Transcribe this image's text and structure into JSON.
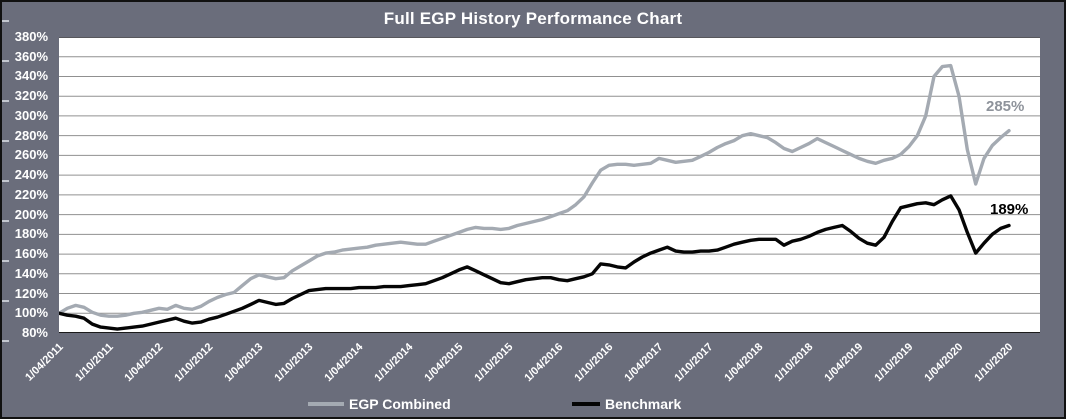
{
  "chart_data": {
    "type": "line",
    "title": "Full EGP History Performance Chart",
    "grid": true,
    "legend_position": "bottom",
    "y_axis": {
      "min": 80,
      "max": 380,
      "step": 20,
      "tick_suffix": "%",
      "tick_labels": [
        "380%",
        "360%",
        "340%",
        "320%",
        "300%",
        "280%",
        "260%",
        "240%",
        "220%",
        "200%",
        "180%",
        "160%",
        "140%",
        "120%",
        "100%",
        "80%"
      ]
    },
    "x_axis": {
      "tick_labels": [
        "1/04/2011",
        "1/10/2011",
        "1/04/2012",
        "1/10/2012",
        "1/04/2013",
        "1/10/2013",
        "1/04/2014",
        "1/10/2014",
        "1/04/2015",
        "1/10/2015",
        "1/04/2016",
        "1/10/2016",
        "1/04/2017",
        "1/10/2017",
        "1/04/2018",
        "1/10/2018",
        "1/04/2019",
        "1/10/2019",
        "1/04/2020",
        "1/10/2020"
      ],
      "frequency": "monthly",
      "start": "1/04/2011",
      "end": "1/10/2020"
    },
    "series": [
      {
        "name": "EGP Combined",
        "color": "#a4aab2",
        "end_label": "285%",
        "values": [
          100,
          105,
          108,
          106,
          101,
          98,
          97,
          97,
          98,
          100,
          101,
          103,
          105,
          104,
          108,
          105,
          104,
          107,
          112,
          116,
          119,
          121,
          128,
          135,
          139,
          137,
          135,
          136,
          143,
          148,
          153,
          158,
          161,
          162,
          164,
          165,
          166,
          167,
          169,
          170,
          171,
          172,
          171,
          170,
          170,
          173,
          176,
          179,
          182,
          185,
          187,
          186,
          186,
          185,
          186,
          189,
          191,
          193,
          195,
          198,
          201,
          204,
          210,
          218,
          232,
          245,
          250,
          251,
          251,
          250,
          251,
          252,
          257,
          255,
          253,
          254,
          255,
          259,
          263,
          268,
          272,
          275,
          280,
          282,
          280,
          278,
          273,
          267,
          264,
          268,
          272,
          277,
          273,
          269,
          265,
          261,
          257,
          254,
          252,
          255,
          257,
          261,
          269,
          280,
          300,
          340,
          350,
          351,
          320,
          266,
          231,
          257,
          270,
          278,
          285
        ]
      },
      {
        "name": "Benchmark",
        "color": "#050505",
        "end_label": "189%",
        "values": [
          100,
          98,
          97,
          95,
          89,
          86,
          85,
          84,
          85,
          86,
          87,
          89,
          91,
          93,
          95,
          92,
          90,
          91,
          94,
          96,
          99,
          102,
          105,
          109,
          113,
          111,
          109,
          110,
          115,
          119,
          123,
          124,
          125,
          125,
          125,
          125,
          126,
          126,
          126,
          127,
          127,
          127,
          128,
          129,
          130,
          133,
          136,
          140,
          144,
          147,
          143,
          139,
          135,
          131,
          130,
          132,
          134,
          135,
          136,
          136,
          134,
          133,
          135,
          137,
          140,
          150,
          149,
          147,
          146,
          152,
          157,
          161,
          164,
          167,
          163,
          162,
          162,
          163,
          163,
          164,
          167,
          170,
          172,
          174,
          175,
          175,
          175,
          169,
          173,
          175,
          178,
          182,
          185,
          187,
          189,
          183,
          176,
          171,
          169,
          177,
          193,
          207,
          209,
          211,
          212,
          210,
          215,
          219,
          205,
          182,
          161,
          171,
          180,
          186,
          189
        ]
      }
    ]
  },
  "colors": {
    "background": "#6a6d7b",
    "plot_background": "#ffffff",
    "gridline": "#909090",
    "axis_line": "#1a1a1a",
    "text": "#ffffff"
  }
}
